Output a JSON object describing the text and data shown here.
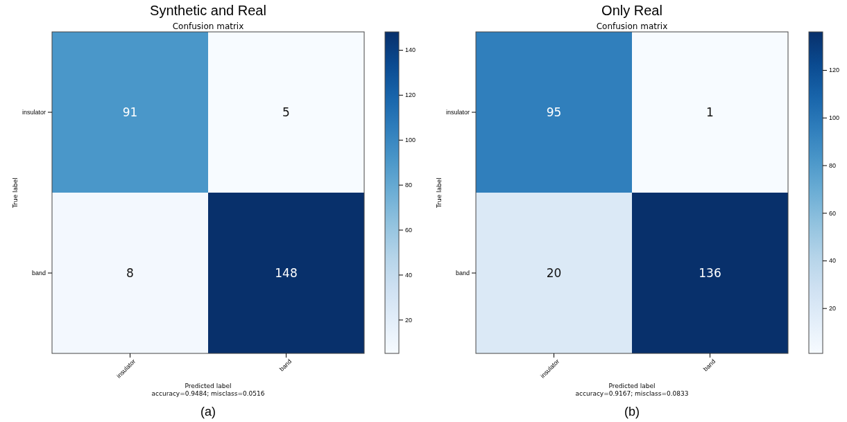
{
  "chart_data": [
    {
      "type": "heatmap",
      "title": "Synthetic and Real",
      "subtitle": "Confusion matrix",
      "xlabel": "Predicted label",
      "ylabel": "True label",
      "categories": [
        "insulator",
        "band"
      ],
      "y_categories": [
        "insulator",
        "band"
      ],
      "cells": [
        [
          91,
          5
        ],
        [
          8,
          148
        ]
      ],
      "data_labels": true,
      "clim": [
        5,
        148
      ],
      "cticks": [
        20,
        40,
        60,
        80,
        100,
        120,
        140
      ],
      "annotations": [
        "accuracy=0.9484; misclass=0.0516",
        "(a)"
      ]
    },
    {
      "type": "heatmap",
      "title": "Only Real",
      "subtitle": "Confusion matrix",
      "xlabel": "Predicted label",
      "ylabel": "True label",
      "categories": [
        "insulator",
        "band"
      ],
      "y_categories": [
        "insulator",
        "band"
      ],
      "cells": [
        [
          95,
          1
        ],
        [
          20,
          136
        ]
      ],
      "data_labels": true,
      "clim": [
        1,
        136
      ],
      "cticks": [
        20,
        40,
        60,
        80,
        100,
        120
      ],
      "annotations": [
        "accuracy=0.9167; misclass=0.0833",
        "(b)"
      ]
    }
  ]
}
